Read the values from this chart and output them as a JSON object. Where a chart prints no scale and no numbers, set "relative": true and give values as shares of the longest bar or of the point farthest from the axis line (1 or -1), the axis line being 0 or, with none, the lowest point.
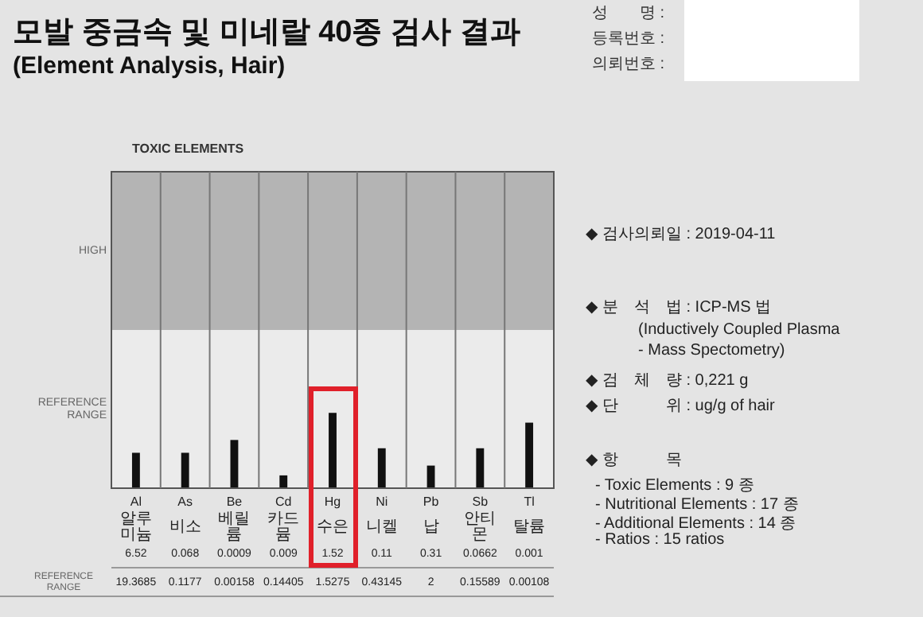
{
  "chart_data": {
    "type": "bar",
    "title": "모발 중금속 및 미네랄 40종 검사 결과",
    "subtitle": "(Element Analysis, Hair)",
    "categories": [
      "Al",
      "As",
      "Be",
      "Cd",
      "Hg",
      "Ni",
      "Pb",
      "Sb",
      "Tl"
    ],
    "values": [
      0.47,
      0.47,
      0.64,
      0.17,
      1,
      0.53,
      0.3,
      0.53,
      0.87
    ],
    "color": "#111111",
    "relative": true,
    "bands": [
      {
        "axis": "y",
        "from": 2.1,
        "to": 4.2,
        "label": "HIGH",
        "color": "#b4b4b4"
      },
      {
        "axis": "y",
        "from": 0,
        "to": 2.1,
        "label": "REFERENCE RANGE",
        "color": "#ebebeb"
      }
    ],
    "annotations": [
      "TOXIC ELEMENTS",
      "성　　명 :",
      "등록번호 :",
      "의뢰번호 :",
      "REFERENCE RANGE",
      "◆ 검사의뢰일 : 2019-04-11",
      "◆ 분　석　법 : ICP-MS 법",
      "(Inductively Coupled Plasma",
      "- Mass Spectometry)",
      "◆ 검　체　량 : 0,221 g",
      "◆ 단　　　위 : ug/g of hair",
      "◆ 항　　　목",
      "- Toxic Elements : 9 종",
      "- Nutritional Elements : 17 종",
      "- Additional Elements : 14 종",
      "- Ratios : 15 ratios",
      "알루미늄",
      "비소",
      "베릴륨",
      "카드뮴",
      "수은",
      "니켈",
      "납",
      "안티몬",
      "탈륨",
      "6.52",
      "0.068",
      "0.0009",
      "0.009",
      "1.52",
      "0.11",
      "0.31",
      "0.0662",
      "0.001",
      "19.3685",
      "0.1177",
      "0.00158",
      "0.14405",
      "1.5275",
      "0.43145",
      "2",
      "0.15589",
      "0.00108"
    ]
  }
}
